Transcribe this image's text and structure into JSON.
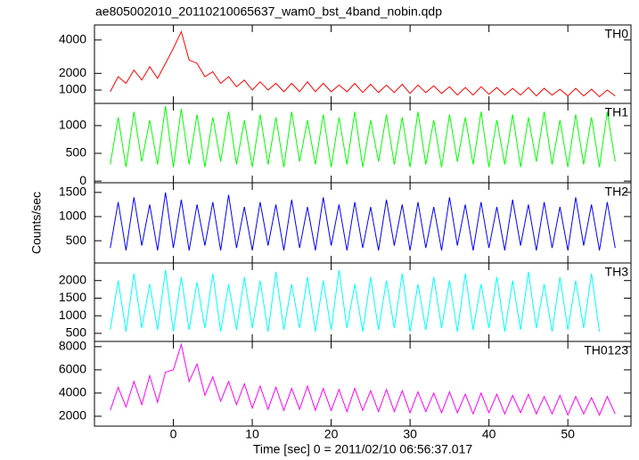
{
  "chart_data": {
    "type": "line",
    "title": "ae805002010_20110210065637_wam0_bst_4band_nobin.qdp",
    "ylabel": "Counts/sec",
    "xlabel": "Time [sec] 0 = 2011/02/10 06:56:37.017",
    "xlim": [
      -10,
      58
    ],
    "xticks": [
      0,
      10,
      20,
      30,
      40,
      50
    ],
    "x": [
      -8,
      -7,
      -6,
      -5,
      -4,
      -3,
      -2,
      -1,
      0,
      1,
      2,
      3,
      4,
      5,
      6,
      7,
      8,
      9,
      10,
      11,
      12,
      13,
      14,
      15,
      16,
      17,
      18,
      19,
      20,
      21,
      22,
      23,
      24,
      25,
      26,
      27,
      28,
      29,
      30,
      31,
      32,
      33,
      34,
      35,
      36,
      37,
      38,
      39,
      40,
      41,
      42,
      43,
      44,
      45,
      46,
      47,
      48,
      49,
      50,
      51,
      52,
      53,
      54,
      55,
      56
    ],
    "panels": [
      {
        "name": "TH0",
        "color": "#ff0000",
        "ylim": [
          200,
          4900
        ],
        "yticks": [
          1000,
          2000,
          4000
        ],
        "values": [
          900,
          1800,
          1400,
          2200,
          1600,
          2400,
          1700,
          2600,
          3500,
          4500,
          2800,
          2600,
          1800,
          2100,
          1400,
          1800,
          1200,
          1600,
          1000,
          1500,
          1000,
          1400,
          900,
          1400,
          900,
          1500,
          900,
          1400,
          900,
          1300,
          900,
          1400,
          850,
          1350,
          850,
          1300,
          850,
          1350,
          800,
          1300,
          850,
          1250,
          800,
          1200,
          700,
          1150,
          700,
          1200,
          750,
          1150,
          700,
          1100,
          700,
          1150,
          650,
          1100,
          700,
          1050,
          650,
          1100,
          650,
          1050,
          600,
          1000,
          650
        ]
      },
      {
        "name": "TH1",
        "color": "#00ff00",
        "ylim": [
          -30,
          1400
        ],
        "yticks": [
          0,
          500,
          1000
        ],
        "values": [
          300,
          1150,
          250,
          1250,
          350,
          1100,
          300,
          1350,
          250,
          1300,
          300,
          1200,
          250,
          1150,
          350,
          1250,
          300,
          1100,
          250,
          1200,
          300,
          1150,
          250,
          1250,
          350,
          1100,
          300,
          1200,
          250,
          1150,
          300,
          1250,
          250,
          1100,
          350,
          1200,
          300,
          1150,
          250,
          1250,
          300,
          1100,
          250,
          1200,
          350,
          1150,
          300,
          1250,
          250,
          1100,
          300,
          1200,
          250,
          1150,
          350,
          1250,
          300,
          1100,
          250,
          1200,
          300,
          1150,
          250,
          1250,
          350
        ]
      },
      {
        "name": "TH2",
        "color": "#0000ff",
        "ylim": [
          40,
          1700
        ],
        "yticks": [
          500,
          1000,
          1500
        ],
        "values": [
          350,
          1300,
          300,
          1400,
          400,
          1250,
          300,
          1500,
          350,
          1350,
          300,
          1250,
          400,
          1300,
          300,
          1450,
          350,
          1200,
          300,
          1300,
          400,
          1250,
          300,
          1350,
          350,
          1200,
          300,
          1400,
          400,
          1250,
          300,
          1300,
          350,
          1200,
          300,
          1350,
          400,
          1250,
          300,
          1300,
          350,
          1200,
          300,
          1400,
          400,
          1250,
          300,
          1300,
          350,
          1200,
          300,
          1350,
          400,
          1250,
          300,
          1300,
          350,
          1200,
          300,
          1400,
          400,
          1250,
          300,
          1300,
          350
        ]
      },
      {
        "name": "TH3",
        "color": "#00ffff",
        "ylim": [
          270,
          2500
        ],
        "yticks": [
          500,
          1000,
          1500,
          2000
        ],
        "values": [
          600,
          2000,
          550,
          2200,
          650,
          1900,
          600,
          2300,
          550,
          2100,
          600,
          1950,
          650,
          2200,
          550,
          1900,
          600,
          2100,
          650,
          2000,
          550,
          2250,
          600,
          1900,
          650,
          2100,
          550,
          2000,
          600,
          2300,
          650,
          1900,
          550,
          2100,
          600,
          2000,
          650,
          2200,
          550,
          1900,
          600,
          2100,
          650,
          2000,
          550,
          2200,
          600,
          1900,
          650,
          2100,
          550,
          2000,
          600,
          2250,
          650,
          1900,
          550,
          2100,
          600,
          2000,
          650,
          2200,
          550
        ]
      },
      {
        "name": "TH0123",
        "color": "#ff00ff",
        "ylim": [
          1150,
          8450
        ],
        "yticks": [
          2000,
          4000,
          6000,
          8000
        ],
        "values": [
          2500,
          4500,
          2800,
          5000,
          3000,
          5500,
          3200,
          5800,
          6000,
          8200,
          5000,
          6500,
          3800,
          5400,
          3300,
          5000,
          3000,
          4800,
          2700,
          4600,
          2600,
          4500,
          2500,
          4400,
          2600,
          4600,
          2500,
          4400,
          2500,
          4300,
          2400,
          4400,
          2500,
          4200,
          2400,
          4300,
          2400,
          4200,
          2300,
          4100,
          2400,
          4000,
          2300,
          4100,
          2300,
          3900,
          2200,
          4000,
          2300,
          3900,
          2200,
          3800,
          2300,
          3900,
          2200,
          3700,
          2200,
          3800,
          2100,
          3700,
          2200,
          3600,
          2100,
          3700,
          2200
        ]
      }
    ]
  }
}
